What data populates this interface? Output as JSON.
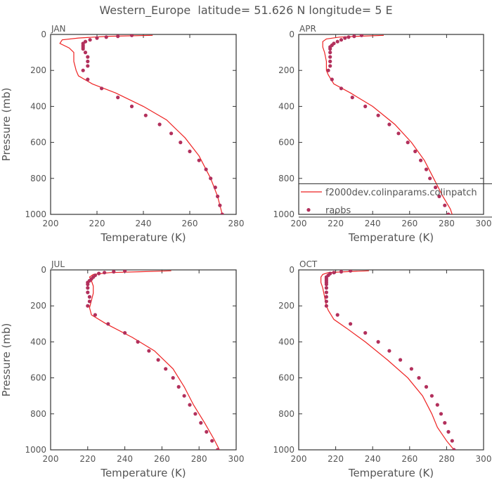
{
  "figure": {
    "title": "Western_Europe  latitude= 51.626 N longitude= 5 E"
  },
  "colors": {
    "model": "#ee2222",
    "obs": "#b2305c",
    "axis": "#333333",
    "text": "#555555"
  },
  "legend": {
    "model_label": "f2000dev.colinparams.colinpatch",
    "obs_label": "raobs",
    "panel": "APR",
    "placement": "bottom-right"
  },
  "chart_data": [
    {
      "type": "line",
      "label": "JAN",
      "xlabel": "Temperature (K)",
      "ylabel": "Pressure (mb)",
      "xlim": [
        200,
        280
      ],
      "ylim": [
        1000,
        0
      ],
      "xticks": [
        200,
        220,
        240,
        260,
        280
      ],
      "yticks": [
        0,
        200,
        400,
        600,
        800,
        1000
      ],
      "series": [
        {
          "name": "f2000dev.colinparams.colinpatch",
          "kind": "line",
          "x": [
            244,
            225,
            212,
            205,
            204,
            208,
            210,
            210,
            211,
            212,
            218,
            228,
            240,
            250,
            258,
            264,
            269,
            272,
            274
          ],
          "y": [
            5,
            10,
            20,
            30,
            50,
            75,
            100,
            150,
            200,
            230,
            275,
            325,
            400,
            475,
            575,
            675,
            800,
            900,
            1000
          ]
        },
        {
          "name": "raobs",
          "kind": "scatter",
          "x": [
            235,
            229,
            224,
            220,
            217,
            215,
            214,
            214,
            214,
            214,
            215,
            216,
            216,
            216,
            214,
            216,
            222,
            229,
            235,
            241,
            247,
            252,
            256,
            260,
            264,
            267,
            269,
            271,
            272,
            273,
            274
          ],
          "y": [
            5,
            10,
            15,
            20,
            30,
            40,
            50,
            60,
            70,
            80,
            100,
            125,
            150,
            175,
            200,
            250,
            300,
            350,
            400,
            450,
            500,
            550,
            600,
            650,
            700,
            750,
            800,
            850,
            900,
            950,
            1000
          ]
        }
      ]
    },
    {
      "type": "line",
      "label": "APR",
      "xlabel": "Temperature (K)",
      "ylabel": "Pressure (mb)",
      "xlim": [
        200,
        300
      ],
      "ylim": [
        1000,
        0
      ],
      "xticks": [
        200,
        220,
        240,
        260,
        280,
        300
      ],
      "yticks": [
        0,
        200,
        400,
        600,
        800,
        1000
      ],
      "series": [
        {
          "name": "f2000dev.colinparams.colinpatch",
          "kind": "line",
          "x": [
            246,
            232,
            222,
            215,
            213,
            213,
            214,
            215,
            215,
            216,
            219,
            228,
            240,
            252,
            261,
            268,
            273,
            278,
            282,
            283
          ],
          "y": [
            5,
            10,
            15,
            25,
            40,
            70,
            100,
            150,
            200,
            225,
            275,
            325,
            400,
            500,
            600,
            700,
            800,
            900,
            970,
            1000
          ]
        },
        {
          "name": "raobs",
          "kind": "scatter",
          "x": [
            234,
            230,
            227,
            225,
            223,
            221,
            219,
            218,
            217,
            217,
            217,
            217,
            217,
            217,
            216,
            218,
            223,
            229,
            236,
            243,
            249,
            254,
            259,
            263,
            266,
            269,
            271,
            274,
            276,
            279,
            281
          ],
          "y": [
            5,
            10,
            15,
            20,
            30,
            40,
            50,
            60,
            70,
            80,
            100,
            125,
            150,
            175,
            200,
            250,
            300,
            350,
            400,
            450,
            500,
            550,
            600,
            650,
            700,
            750,
            800,
            850,
            900,
            950,
            1000
          ]
        }
      ]
    },
    {
      "type": "line",
      "label": "JUL",
      "xlabel": "Temperature (K)",
      "ylabel": "Pressure (mb)",
      "xlim": [
        200,
        300
      ],
      "ylim": [
        1000,
        0
      ],
      "xticks": [
        200,
        220,
        240,
        260,
        280,
        300
      ],
      "yticks": [
        0,
        200,
        400,
        600,
        800,
        1000
      ],
      "series": [
        {
          "name": "f2000dev.colinparams.colinpatch",
          "kind": "line",
          "x": [
            265,
            248,
            232,
            223,
            221,
            222,
            223,
            223,
            222,
            221,
            222,
            230,
            244,
            256,
            266,
            272,
            277,
            283,
            288,
            291
          ],
          "y": [
            5,
            10,
            15,
            25,
            40,
            60,
            90,
            130,
            170,
            210,
            250,
            300,
            375,
            450,
            550,
            650,
            750,
            850,
            940,
            1000
          ]
        },
        {
          "name": "raobs",
          "kind": "scatter",
          "x": [
            240,
            234,
            229,
            226,
            224,
            223,
            222,
            221,
            220,
            220,
            220,
            220,
            221,
            221,
            220,
            224,
            231,
            240,
            247,
            253,
            258,
            262,
            266,
            269,
            272,
            275,
            278,
            281,
            284,
            287,
            290
          ],
          "y": [
            5,
            10,
            15,
            20,
            30,
            40,
            50,
            60,
            70,
            80,
            100,
            125,
            150,
            175,
            200,
            250,
            300,
            350,
            400,
            450,
            500,
            550,
            600,
            650,
            700,
            750,
            800,
            850,
            900,
            950,
            1000
          ]
        }
      ]
    },
    {
      "type": "line",
      "label": "OCT",
      "xlabel": "Temperature (K)",
      "ylabel": "Pressure (mb)",
      "xlim": [
        200,
        300
      ],
      "ylim": [
        1000,
        0
      ],
      "xticks": [
        200,
        220,
        240,
        260,
        280,
        300
      ],
      "yticks": [
        0,
        200,
        400,
        600,
        800,
        1000
      ],
      "series": [
        {
          "name": "f2000dev.colinparams.colinpatch",
          "kind": "line",
          "x": [
            238,
            225,
            216,
            213,
            212,
            212,
            213,
            214,
            215,
            216,
            219,
            226,
            236,
            248,
            259,
            267,
            272,
            275,
            280,
            284
          ],
          "y": [
            5,
            10,
            15,
            25,
            40,
            70,
            100,
            150,
            200,
            225,
            275,
            325,
            400,
            500,
            600,
            700,
            800,
            875,
            950,
            1000
          ]
        },
        {
          "name": "raobs",
          "kind": "scatter",
          "x": [
            228,
            223,
            219,
            217,
            216,
            215,
            215,
            215,
            215,
            215,
            215,
            215,
            215,
            215,
            215,
            221,
            228,
            236,
            243,
            249,
            255,
            261,
            265,
            269,
            272,
            275,
            277,
            279,
            281,
            283,
            284
          ],
          "y": [
            5,
            10,
            15,
            20,
            30,
            40,
            50,
            60,
            70,
            80,
            100,
            125,
            150,
            175,
            200,
            250,
            300,
            350,
            400,
            450,
            500,
            550,
            600,
            650,
            700,
            750,
            800,
            850,
            900,
            950,
            1000
          ]
        }
      ]
    }
  ]
}
